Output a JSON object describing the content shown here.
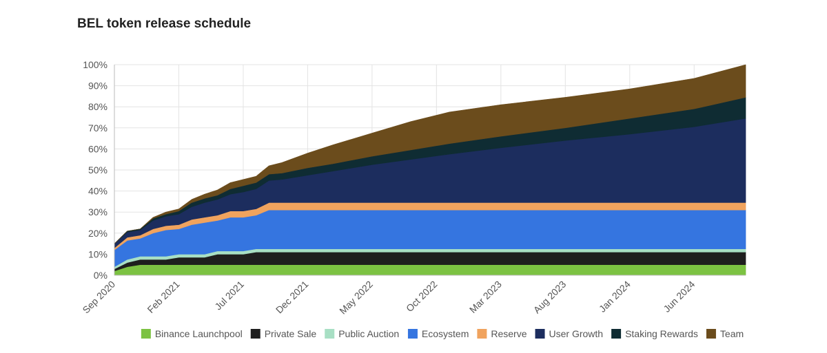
{
  "chart_data": {
    "type": "area",
    "title": "BEL token release schedule",
    "xlabel": "",
    "ylabel": "",
    "ylim": [
      0,
      100
    ],
    "y_ticks": [
      "0%",
      "10%",
      "20%",
      "30%",
      "40%",
      "50%",
      "60%",
      "70%",
      "80%",
      "90%",
      "100%"
    ],
    "x_tick_labels": [
      "Sep 2020",
      "Feb 2021",
      "Jul 2021",
      "Dec 2021",
      "May 2022",
      "Oct 2022",
      "Mar 2023",
      "Aug 2023",
      "Jan 2024",
      "Jun 2024"
    ],
    "x": [
      "Sep 2020",
      "Oct 2020",
      "Nov 2020",
      "Dec 2020",
      "Jan 2021",
      "Feb 2021",
      "Mar 2021",
      "Apr 2021",
      "May 2021",
      "Jun 2021",
      "Jul 2021",
      "Aug 2021",
      "Sep 2021",
      "Oct 2021",
      "Dec 2021",
      "Feb 2022",
      "May 2022",
      "Aug 2022",
      "Nov 2022",
      "Mar 2023",
      "Aug 2023",
      "Jan 2024",
      "Jun 2024",
      "Oct 2024"
    ],
    "legend_position": "bottom",
    "grid": true,
    "series": [
      {
        "name": "Binance Launchpool",
        "color": "#7cc242",
        "values": [
          2,
          4,
          5,
          5,
          5,
          5,
          5,
          5,
          5,
          5,
          5,
          5,
          5,
          5,
          5,
          5,
          5,
          5,
          5,
          5,
          5,
          5,
          5,
          5
        ]
      },
      {
        "name": "Private Sale",
        "color": "#1e1e1e",
        "values": [
          1,
          2,
          2.5,
          2.5,
          2.5,
          3.5,
          3.5,
          3.5,
          5,
          5,
          5,
          6,
          6,
          6,
          6,
          6,
          6,
          6,
          6,
          6,
          6,
          6,
          6,
          6
        ]
      },
      {
        "name": "Public Auction",
        "color": "#a8dfc4",
        "values": [
          1,
          1.5,
          1.5,
          1.5,
          1.5,
          1.5,
          1.5,
          1.5,
          1.5,
          1.5,
          1.5,
          1.5,
          1.5,
          1.5,
          1.5,
          1.5,
          1.5,
          1.5,
          1.5,
          1.5,
          1.5,
          1.5,
          1.5,
          1.5
        ]
      },
      {
        "name": "Ecosystem",
        "color": "#3575e0",
        "values": [
          8,
          9,
          8.5,
          11,
          12.5,
          12,
          14,
          15,
          14.5,
          16,
          16,
          16,
          18.5,
          18.5,
          18.5,
          18.5,
          18.5,
          18.5,
          18.5,
          18.5,
          18.5,
          18.5,
          18.5,
          18.5
        ]
      },
      {
        "name": "Reserve",
        "color": "#f0a35e",
        "values": [
          1,
          1.5,
          1.5,
          2,
          2,
          2,
          2.5,
          2.5,
          2.5,
          3,
          3,
          3,
          3.5,
          3.5,
          3.5,
          3.5,
          3.5,
          3.5,
          3.5,
          3.5,
          3.5,
          3.5,
          3.5,
          3.5
        ]
      },
      {
        "name": "User Growth",
        "color": "#1c2d5e",
        "values": [
          2,
          2.5,
          2.5,
          4,
          4.5,
          5,
          6,
          7,
          7.5,
          8,
          9,
          9.5,
          10.5,
          11,
          13,
          15,
          18,
          20.5,
          23,
          26,
          29.5,
          32.5,
          36,
          40
        ]
      },
      {
        "name": "Staking Rewards",
        "color": "#0f2c33",
        "values": [
          0,
          0.5,
          0.5,
          1,
          1,
          1.5,
          2,
          2,
          2,
          2.5,
          3,
          3,
          3,
          3,
          3.5,
          3.5,
          4,
          4.5,
          5,
          5.5,
          6,
          7.5,
          8.5,
          10
        ]
      },
      {
        "name": "Team",
        "color": "#6b4c1c",
        "values": [
          0,
          0,
          0,
          0.5,
          1,
          1,
          1.5,
          2,
          2.5,
          3,
          3,
          3,
          4,
          5,
          7,
          9,
          11,
          13.5,
          15,
          15,
          14.5,
          14,
          14.5,
          15.5
        ]
      }
    ]
  }
}
